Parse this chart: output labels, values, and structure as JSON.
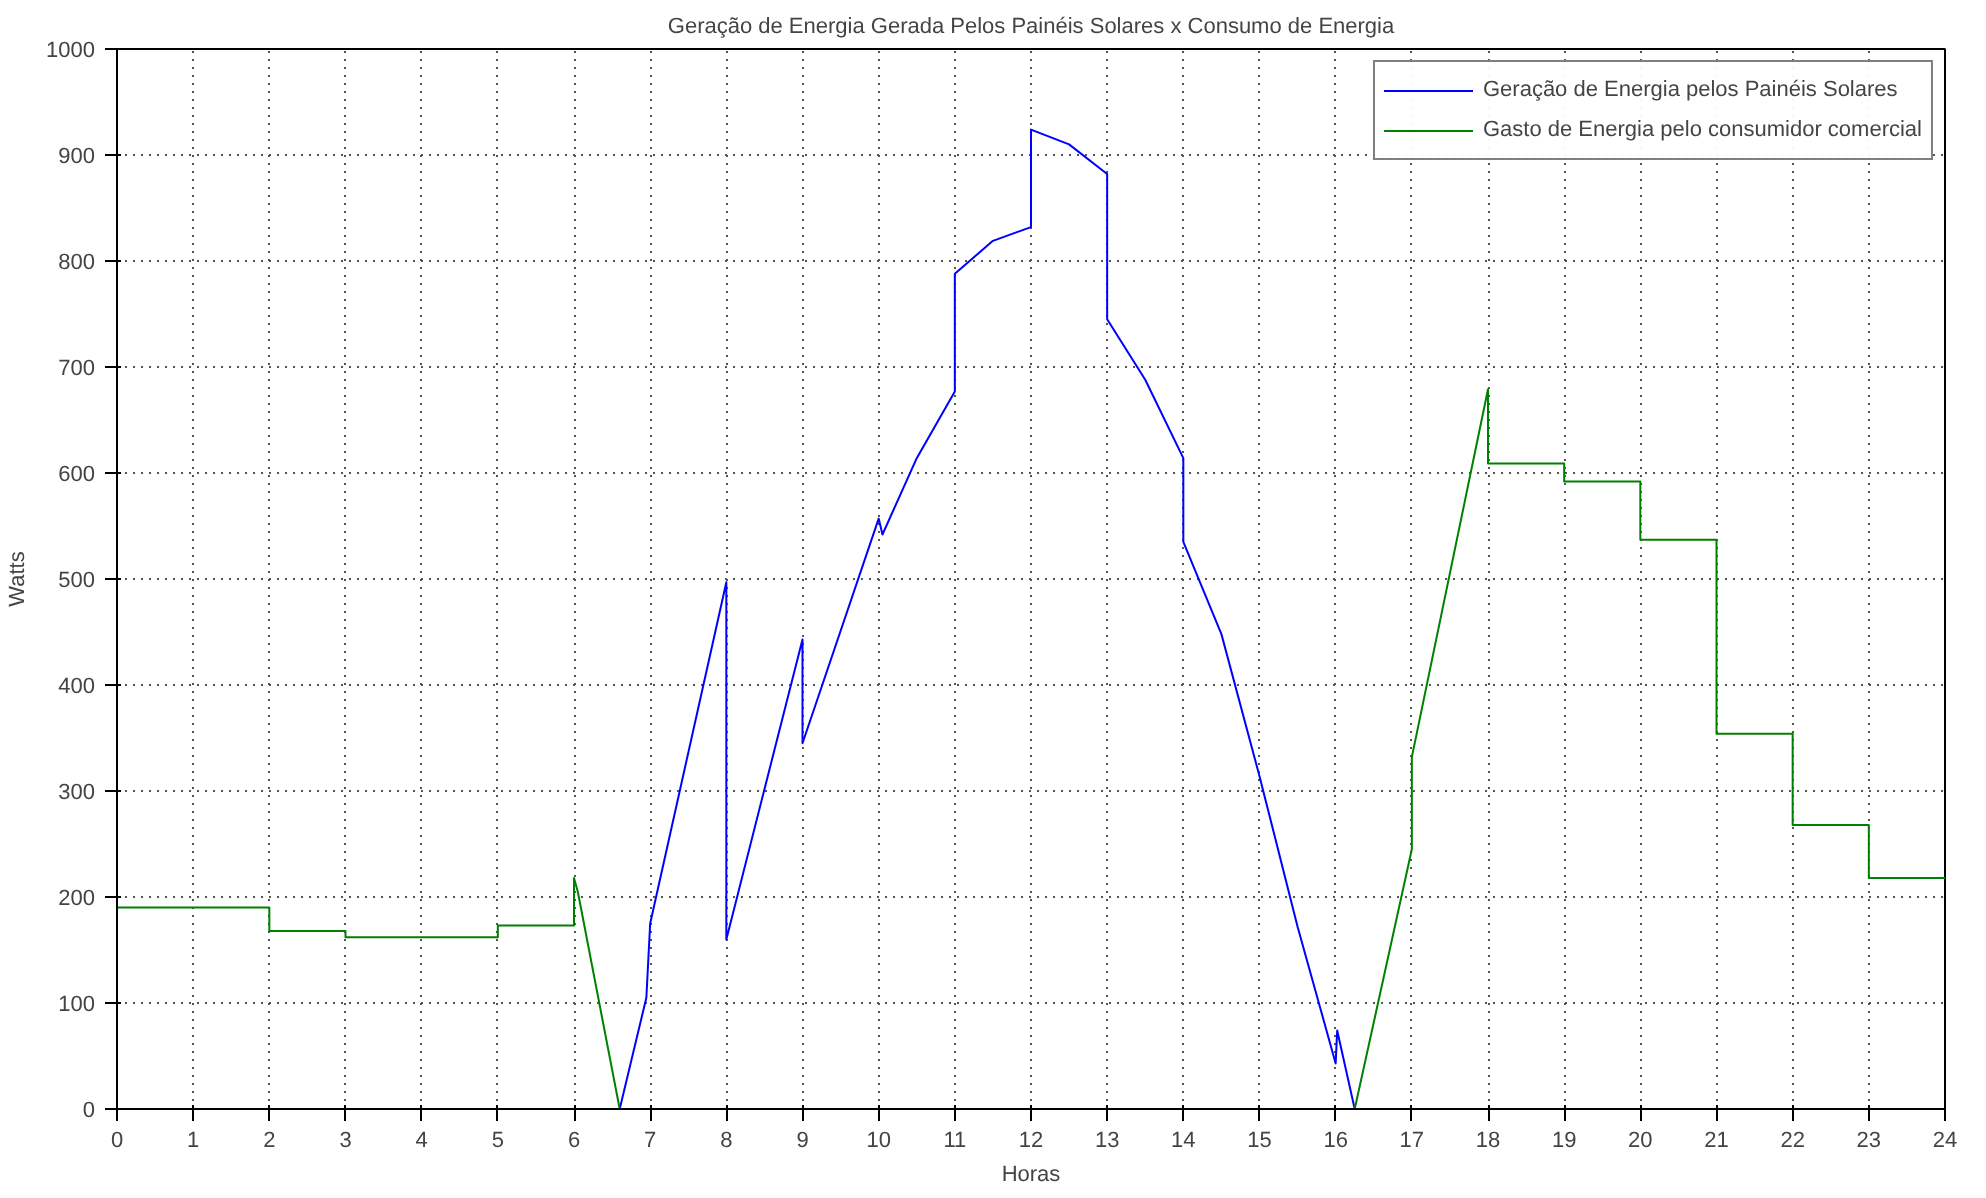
{
  "chart_data": {
    "type": "line",
    "title": "Geração de Energia Gerada Pelos Painéis Solares x Consumo de Energia",
    "xlabel": "Horas",
    "ylabel": "Watts",
    "xlim": [
      0,
      24
    ],
    "ylim": [
      0,
      1000
    ],
    "xticks": [
      0,
      1,
      2,
      3,
      4,
      5,
      6,
      7,
      8,
      9,
      10,
      11,
      12,
      13,
      14,
      15,
      16,
      17,
      18,
      19,
      20,
      21,
      22,
      23,
      24
    ],
    "yticks": [
      0,
      100,
      200,
      300,
      400,
      500,
      600,
      700,
      800,
      900,
      1000
    ],
    "grid": true,
    "legend": "top right",
    "line_style": "solid",
    "marker": "none",
    "series": [
      {
        "name": "Geração de Energia pelos Painéis Solares",
        "color": "#0000ff",
        "x": [
          0,
          6.6,
          6.95,
          7,
          8,
          8,
          9,
          9,
          10,
          10.05,
          10.5,
          11,
          11,
          11.5,
          12,
          12,
          12.5,
          13,
          13,
          13.5,
          14,
          14,
          14.5,
          15,
          15.5,
          16,
          16.02,
          16.25,
          24
        ],
        "values": [
          0,
          0,
          105,
          175,
          497,
          160,
          443,
          345,
          557,
          542,
          614,
          677,
          788,
          819,
          832,
          924,
          910,
          882,
          745,
          688,
          614,
          535,
          448,
          314,
          172,
          43,
          74,
          0,
          0
        ]
      },
      {
        "name": "Gasto de Energia pelo consumidor comercial",
        "color": "#008000",
        "x": [
          0,
          2,
          2,
          3,
          3,
          5,
          5,
          6,
          6,
          6.05,
          6.6,
          16.25,
          17,
          17,
          18,
          18,
          19,
          19,
          20,
          20,
          21,
          21,
          22,
          22,
          23,
          23,
          24
        ],
        "values": [
          190,
          190,
          168,
          168,
          162,
          162,
          173,
          173,
          218,
          205,
          0,
          0,
          245,
          332,
          679,
          609,
          609,
          592,
          592,
          537,
          537,
          354,
          354,
          268,
          268,
          218,
          218
        ]
      }
    ]
  }
}
